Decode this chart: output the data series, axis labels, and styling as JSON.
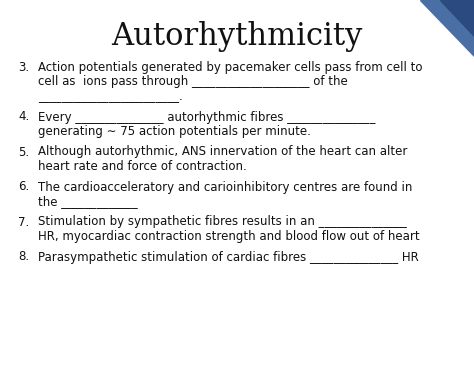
{
  "title": "Autorhythmicity",
  "bg_color": "#ffffff",
  "title_fontsize": 22,
  "title_font": "serif",
  "body_fontsize": 8.5,
  "body_font": "DejaVu Sans",
  "items": [
    {
      "num": "3.",
      "lines": [
        "Action potentials generated by pacemaker cells pass from cell to",
        "cell as  ions pass through ____________________ of the",
        "________________________."
      ]
    },
    {
      "num": "4.",
      "lines": [
        "Every _______________ autorhythmic fibres _______________",
        "generating ∼ 75 action potentials per minute."
      ]
    },
    {
      "num": "5.",
      "lines": [
        "Although autorhythmic, ANS innervation of the heart can alter",
        "heart rate and force of contraction."
      ]
    },
    {
      "num": "6.",
      "lines": [
        "The cardioacceleratory and carioinhibitory centres are found in",
        "the _____________"
      ]
    },
    {
      "num": "7.",
      "lines": [
        "Stimulation by sympathetic fibres results in an _______________",
        "HR, myocardiac contraction strength and blood flow out of heart"
      ]
    },
    {
      "num": "8.",
      "lines": [
        "Parasympathetic stimulation of cardiac fibres _______________ HR"
      ]
    }
  ]
}
